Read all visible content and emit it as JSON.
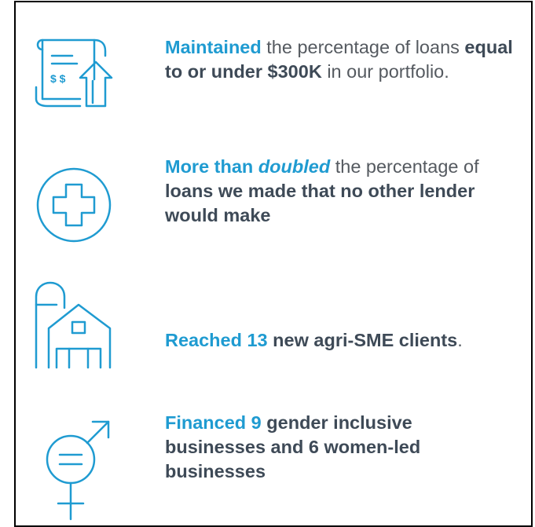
{
  "items": [
    {
      "parts": [
        "Maintained",
        " the percentage of loans ",
        "equal to or under $300K",
        " in our portfolio."
      ]
    },
    {
      "parts": [
        "More than ",
        "doubled",
        " the percentage of ",
        "loans we made that no other lender would make"
      ]
    },
    {
      "parts": [
        "Reached 13",
        " new agri-SME clients",
        "."
      ]
    },
    {
      "parts": [
        "Financed 9",
        " gender inclusive businesses and 6 women-led businesses"
      ]
    }
  ]
}
